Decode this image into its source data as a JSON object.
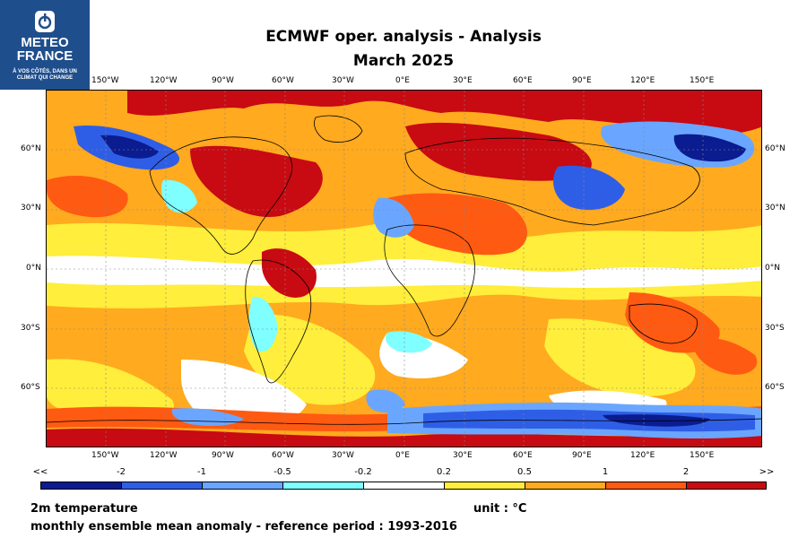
{
  "logo": {
    "name_line1": "METEO",
    "name_line2": "FRANCE",
    "tagline_line1": "À VOS CÔTÉS, DANS UN",
    "tagline_line2": "CLIMAT QUI CHANGE",
    "color": "#1f4e8c"
  },
  "title": {
    "line1": "ECMWF oper. analysis  -  Analysis",
    "line2": "March 2025"
  },
  "map": {
    "top_lon_labels": [
      "150°W",
      "120°W",
      "90°W",
      "60°W",
      "30°W",
      "0°E",
      "30°E",
      "60°E",
      "90°E",
      "120°E",
      "150°E"
    ],
    "bottom_lon_labels": [
      "150°W",
      "120°W",
      "90°W",
      "60°W",
      "30°W",
      "0°E",
      "30°E",
      "60°E",
      "90°E",
      "120°E",
      "150°E"
    ],
    "left_lat_labels": [
      "60°N",
      "30°N",
      "0°N",
      "30°S",
      "60°S"
    ],
    "right_lat_labels": [
      "60°N",
      "30°N",
      "0°N",
      "30°S",
      "60°S"
    ]
  },
  "colorbar": {
    "labels": [
      "<<",
      "-2",
      "-1",
      "-0.5",
      "-0.2",
      "0.2",
      "0.5",
      "1",
      "2",
      ">>"
    ],
    "colors": [
      "#0a1c8f",
      "#2f5ee6",
      "#6aa6ff",
      "#7fffff",
      "#ffffff",
      "#ffee3b",
      "#ffaa1f",
      "#ff5a12",
      "#c80a12"
    ]
  },
  "footer": {
    "variable": "2m temperature",
    "unit": "unit : °C",
    "description": "monthly ensemble mean anomaly - reference period : 1993-2016"
  }
}
